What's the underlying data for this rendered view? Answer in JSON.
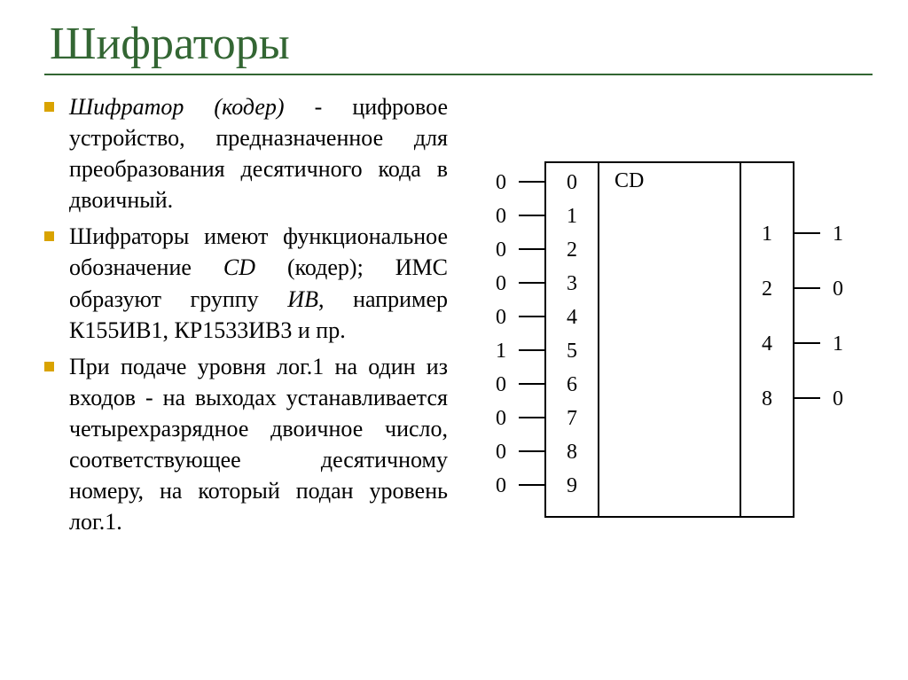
{
  "title": "Шифраторы",
  "bullets": {
    "b1_lead": "Шифратор (кодер)",
    "b1_rest": " - цифровое устройство, предназначенное для преобразования десятичного кода в двоичный.",
    "b2_a": "Шифраторы имеют функциональное обозначение ",
    "b2_cd": "CD",
    "b2_b": " (кодер); ИМС образуют группу ",
    "b2_iv": "ИВ",
    "b2_c": ", например К155ИВ1, КР1533ИВ3 и пр.",
    "b3": "При подаче уровня лог.1 на один из входов - на выходах устанавливается четырехразрядное двоичное число, соответствующее десятичному номеру, на который подан уровень лог.1."
  },
  "diagram": {
    "label": "CD",
    "inputs": [
      {
        "val": "0",
        "pin": "0"
      },
      {
        "val": "0",
        "pin": "1"
      },
      {
        "val": "0",
        "pin": "2"
      },
      {
        "val": "0",
        "pin": "3"
      },
      {
        "val": "0",
        "pin": "4"
      },
      {
        "val": "1",
        "pin": "5"
      },
      {
        "val": "0",
        "pin": "6"
      },
      {
        "val": "0",
        "pin": "7"
      },
      {
        "val": "0",
        "pin": "8"
      },
      {
        "val": "0",
        "pin": "9"
      }
    ],
    "outputs": [
      {
        "pin": "1",
        "val": "1"
      },
      {
        "pin": "2",
        "val": "0"
      },
      {
        "pin": "4",
        "val": "1"
      },
      {
        "pin": "8",
        "val": "0"
      }
    ],
    "stroke": "#000000",
    "stroke_width": 2
  }
}
